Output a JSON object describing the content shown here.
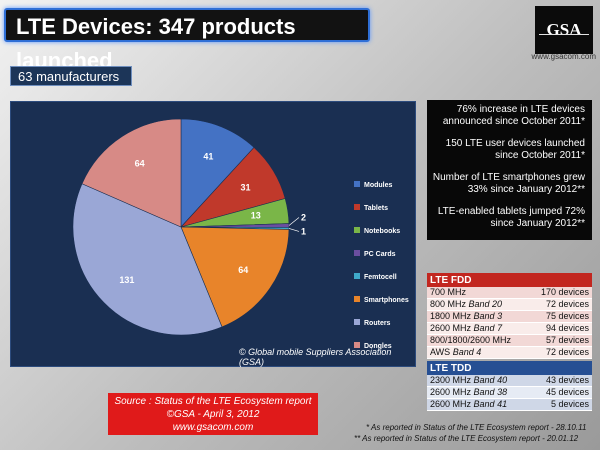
{
  "header": {
    "title": "LTE Devices: 347 products launched"
  },
  "logo": {
    "text": "GSA",
    "url": "www.gsacom.com"
  },
  "manufacturers_badge": "63 manufacturers",
  "chart_copyright": "© Global mobile Suppliers Association (GSA)",
  "chart_data": {
    "type": "pie",
    "slices": [
      {
        "name": "Modules",
        "value": 41,
        "color": "#4472c4"
      },
      {
        "name": "Tablets",
        "value": 31,
        "color": "#c0392b"
      },
      {
        "name": "Notebooks",
        "value": 13,
        "color": "#7ab648"
      },
      {
        "name": "PC Cards",
        "value": 2,
        "color": "#6b4ea0"
      },
      {
        "name": "Femtocell",
        "value": 1,
        "color": "#3fa9c9"
      },
      {
        "name": "Smartphones",
        "value": 64,
        "color": "#e8842a"
      },
      {
        "name": "Routers",
        "value": 131,
        "color": "#9aa7d6"
      },
      {
        "name": "Dongles",
        "value": 64,
        "color": "#d78a86"
      }
    ],
    "legend_position": "right"
  },
  "stats": [
    "76% increase in LTE devices announced since October 2011*",
    "150 LTE user devices launched since October 2011*",
    "Number of LTE smartphones grew 33% since January 2012**",
    "LTE-enabled tablets jumped 72% since January 2012**"
  ],
  "fdd": {
    "title": "LTE FDD",
    "rows": [
      {
        "freq": "700 MHz",
        "band": "",
        "devices": "170 devices"
      },
      {
        "freq": "800 MHz",
        "band": "Band 20",
        "devices": "72 devices"
      },
      {
        "freq": "1800 MHz",
        "band": "Band 3",
        "devices": "75 devices"
      },
      {
        "freq": "2600 MHz",
        "band": "Band 7",
        "devices": "94 devices"
      },
      {
        "freq": "800/1800/2600 MHz",
        "band": "",
        "devices": "57 devices"
      },
      {
        "freq": "AWS",
        "band": "Band 4",
        "devices": "72 devices"
      }
    ]
  },
  "tdd": {
    "title": "LTE TDD",
    "rows": [
      {
        "freq": "2300 MHz",
        "band": "Band 40",
        "devices": "43 devices"
      },
      {
        "freq": "2600 MHz",
        "band": "Band 38",
        "devices": "45 devices"
      },
      {
        "freq": "2600 MHz",
        "band": "Band 41",
        "devices": "5 devices"
      }
    ]
  },
  "source": {
    "line1": "Source : Status of the LTE Ecosystem report",
    "line2": "©GSA - April 3, 2012",
    "line3": "www.gsacom.com"
  },
  "footnotes": {
    "one": "* As reported in Status of the LTE Ecosystem report - 28.10.11",
    "two": "** As reported in Status of the LTE Ecosystem report - 20.01.12"
  }
}
